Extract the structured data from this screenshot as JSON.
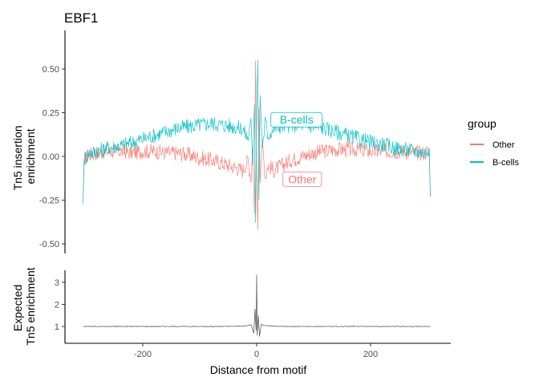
{
  "chart_data": [
    {
      "type": "line",
      "title": "EBF1",
      "ylabel": "Tn5 insertion\nenrichment",
      "xlabel": "",
      "xlim": [
        -310,
        310
      ],
      "ylim": [
        -0.52,
        0.72
      ],
      "yticks": [
        0.5,
        0.25,
        0.0,
        -0.25,
        -0.5
      ],
      "ytick_labels": [
        "0.50",
        "0.25",
        "0.00",
        "-0.25",
        "-0.50"
      ],
      "series": [
        {
          "name": "Other",
          "color": "#F8766D",
          "points": [
            [
              -305,
              -0.23
            ],
            [
              -303,
              -0.02
            ],
            [
              -295,
              0.01
            ],
            [
              -280,
              0.02
            ],
            [
              -260,
              0.03
            ],
            [
              -240,
              0.03
            ],
            [
              -220,
              0.02
            ],
            [
              -200,
              0.03
            ],
            [
              -180,
              0.03
            ],
            [
              -160,
              0.02
            ],
            [
              -140,
              0.02
            ],
            [
              -120,
              0.01
            ],
            [
              -100,
              -0.01
            ],
            [
              -80,
              -0.02
            ],
            [
              -60,
              -0.04
            ],
            [
              -40,
              -0.06
            ],
            [
              -25,
              -0.08
            ],
            [
              -15,
              -0.02
            ],
            [
              -10,
              -0.15
            ],
            [
              -7,
              0.05
            ],
            [
              -4,
              -0.33
            ],
            [
              -2,
              0.55
            ],
            [
              0,
              -0.1
            ],
            [
              2,
              -0.42
            ],
            [
              4,
              0.28
            ],
            [
              6,
              -0.15
            ],
            [
              10,
              0.1
            ],
            [
              15,
              -0.12
            ],
            [
              20,
              -0.05
            ],
            [
              30,
              -0.08
            ],
            [
              40,
              -0.06
            ],
            [
              60,
              -0.02
            ],
            [
              80,
              0.0
            ],
            [
              100,
              0.02
            ],
            [
              120,
              0.03
            ],
            [
              140,
              0.04
            ],
            [
              160,
              0.04
            ],
            [
              180,
              0.04
            ],
            [
              200,
              0.03
            ],
            [
              220,
              0.03
            ],
            [
              240,
              0.03
            ],
            [
              260,
              0.03
            ],
            [
              280,
              0.02
            ],
            [
              295,
              0.02
            ],
            [
              303,
              0.04
            ],
            [
              305,
              -0.23
            ]
          ]
        },
        {
          "name": "B-cells",
          "color": "#00BFC4",
          "points": [
            [
              -305,
              -0.27
            ],
            [
              -303,
              -0.02
            ],
            [
              -295,
              0.02
            ],
            [
              -280,
              0.03
            ],
            [
              -260,
              0.05
            ],
            [
              -240,
              0.06
            ],
            [
              -220,
              0.08
            ],
            [
              -200,
              0.1
            ],
            [
              -180,
              0.12
            ],
            [
              -160,
              0.14
            ],
            [
              -140,
              0.16
            ],
            [
              -120,
              0.17
            ],
            [
              -100,
              0.18
            ],
            [
              -80,
              0.19
            ],
            [
              -60,
              0.18
            ],
            [
              -40,
              0.17
            ],
            [
              -25,
              0.16
            ],
            [
              -15,
              0.1
            ],
            [
              -10,
              0.22
            ],
            [
              -7,
              -0.05
            ],
            [
              -4,
              0.3
            ],
            [
              -2,
              -0.38
            ],
            [
              0,
              0.25
            ],
            [
              2,
              0.55
            ],
            [
              4,
              -0.25
            ],
            [
              6,
              0.35
            ],
            [
              10,
              0.05
            ],
            [
              15,
              0.2
            ],
            [
              20,
              0.12
            ],
            [
              30,
              0.16
            ],
            [
              40,
              0.17
            ],
            [
              60,
              0.18
            ],
            [
              80,
              0.18
            ],
            [
              100,
              0.17
            ],
            [
              120,
              0.16
            ],
            [
              140,
              0.14
            ],
            [
              160,
              0.12
            ],
            [
              180,
              0.1
            ],
            [
              200,
              0.08
            ],
            [
              220,
              0.07
            ],
            [
              240,
              0.05
            ],
            [
              260,
              0.04
            ],
            [
              280,
              0.03
            ],
            [
              295,
              0.02
            ],
            [
              303,
              0.05
            ],
            [
              305,
              -0.23
            ]
          ]
        }
      ],
      "annotations": [
        {
          "text": "B-cells",
          "x": 70,
          "y": 0.21,
          "color": "#00BFC4"
        },
        {
          "text": "Other",
          "x": 80,
          "y": -0.13,
          "color": "#F8766D"
        }
      ],
      "legend": {
        "title": "group",
        "position": "right",
        "entries": [
          {
            "label": "Other",
            "color": "#F8766D"
          },
          {
            "label": "B-cells",
            "color": "#00BFC4"
          }
        ]
      },
      "grid": false
    },
    {
      "type": "line",
      "title": "",
      "ylabel": "Expected\nTn5 enrichment",
      "xlabel": "Distance from motif",
      "xlim": [
        -325,
        340
      ],
      "ylim": [
        0.3,
        3.5
      ],
      "yticks": [
        3,
        2,
        1
      ],
      "ytick_labels": [
        "3",
        "2",
        "1"
      ],
      "xticks": [
        -200,
        0,
        200
      ],
      "xtick_labels": [
        "-200",
        "0",
        "200"
      ],
      "series": [
        {
          "name": "",
          "color": "#4d4d4d",
          "points": [
            [
              -305,
              1.0
            ],
            [
              -250,
              1.0
            ],
            [
              -200,
              1.0
            ],
            [
              -150,
              1.0
            ],
            [
              -100,
              1.0
            ],
            [
              -50,
              1.0
            ],
            [
              -20,
              1.02
            ],
            [
              -10,
              1.08
            ],
            [
              -5,
              0.7
            ],
            [
              -3,
              1.8
            ],
            [
              -1,
              0.8
            ],
            [
              0,
              3.35
            ],
            [
              1,
              0.6
            ],
            [
              3,
              1.5
            ],
            [
              5,
              0.55
            ],
            [
              8,
              1.1
            ],
            [
              12,
              1.05
            ],
            [
              20,
              1.03
            ],
            [
              50,
              1.0
            ],
            [
              100,
              1.0
            ],
            [
              150,
              1.0
            ],
            [
              200,
              1.0
            ],
            [
              250,
              1.0
            ],
            [
              305,
              1.0
            ]
          ]
        }
      ],
      "grid": false
    }
  ]
}
